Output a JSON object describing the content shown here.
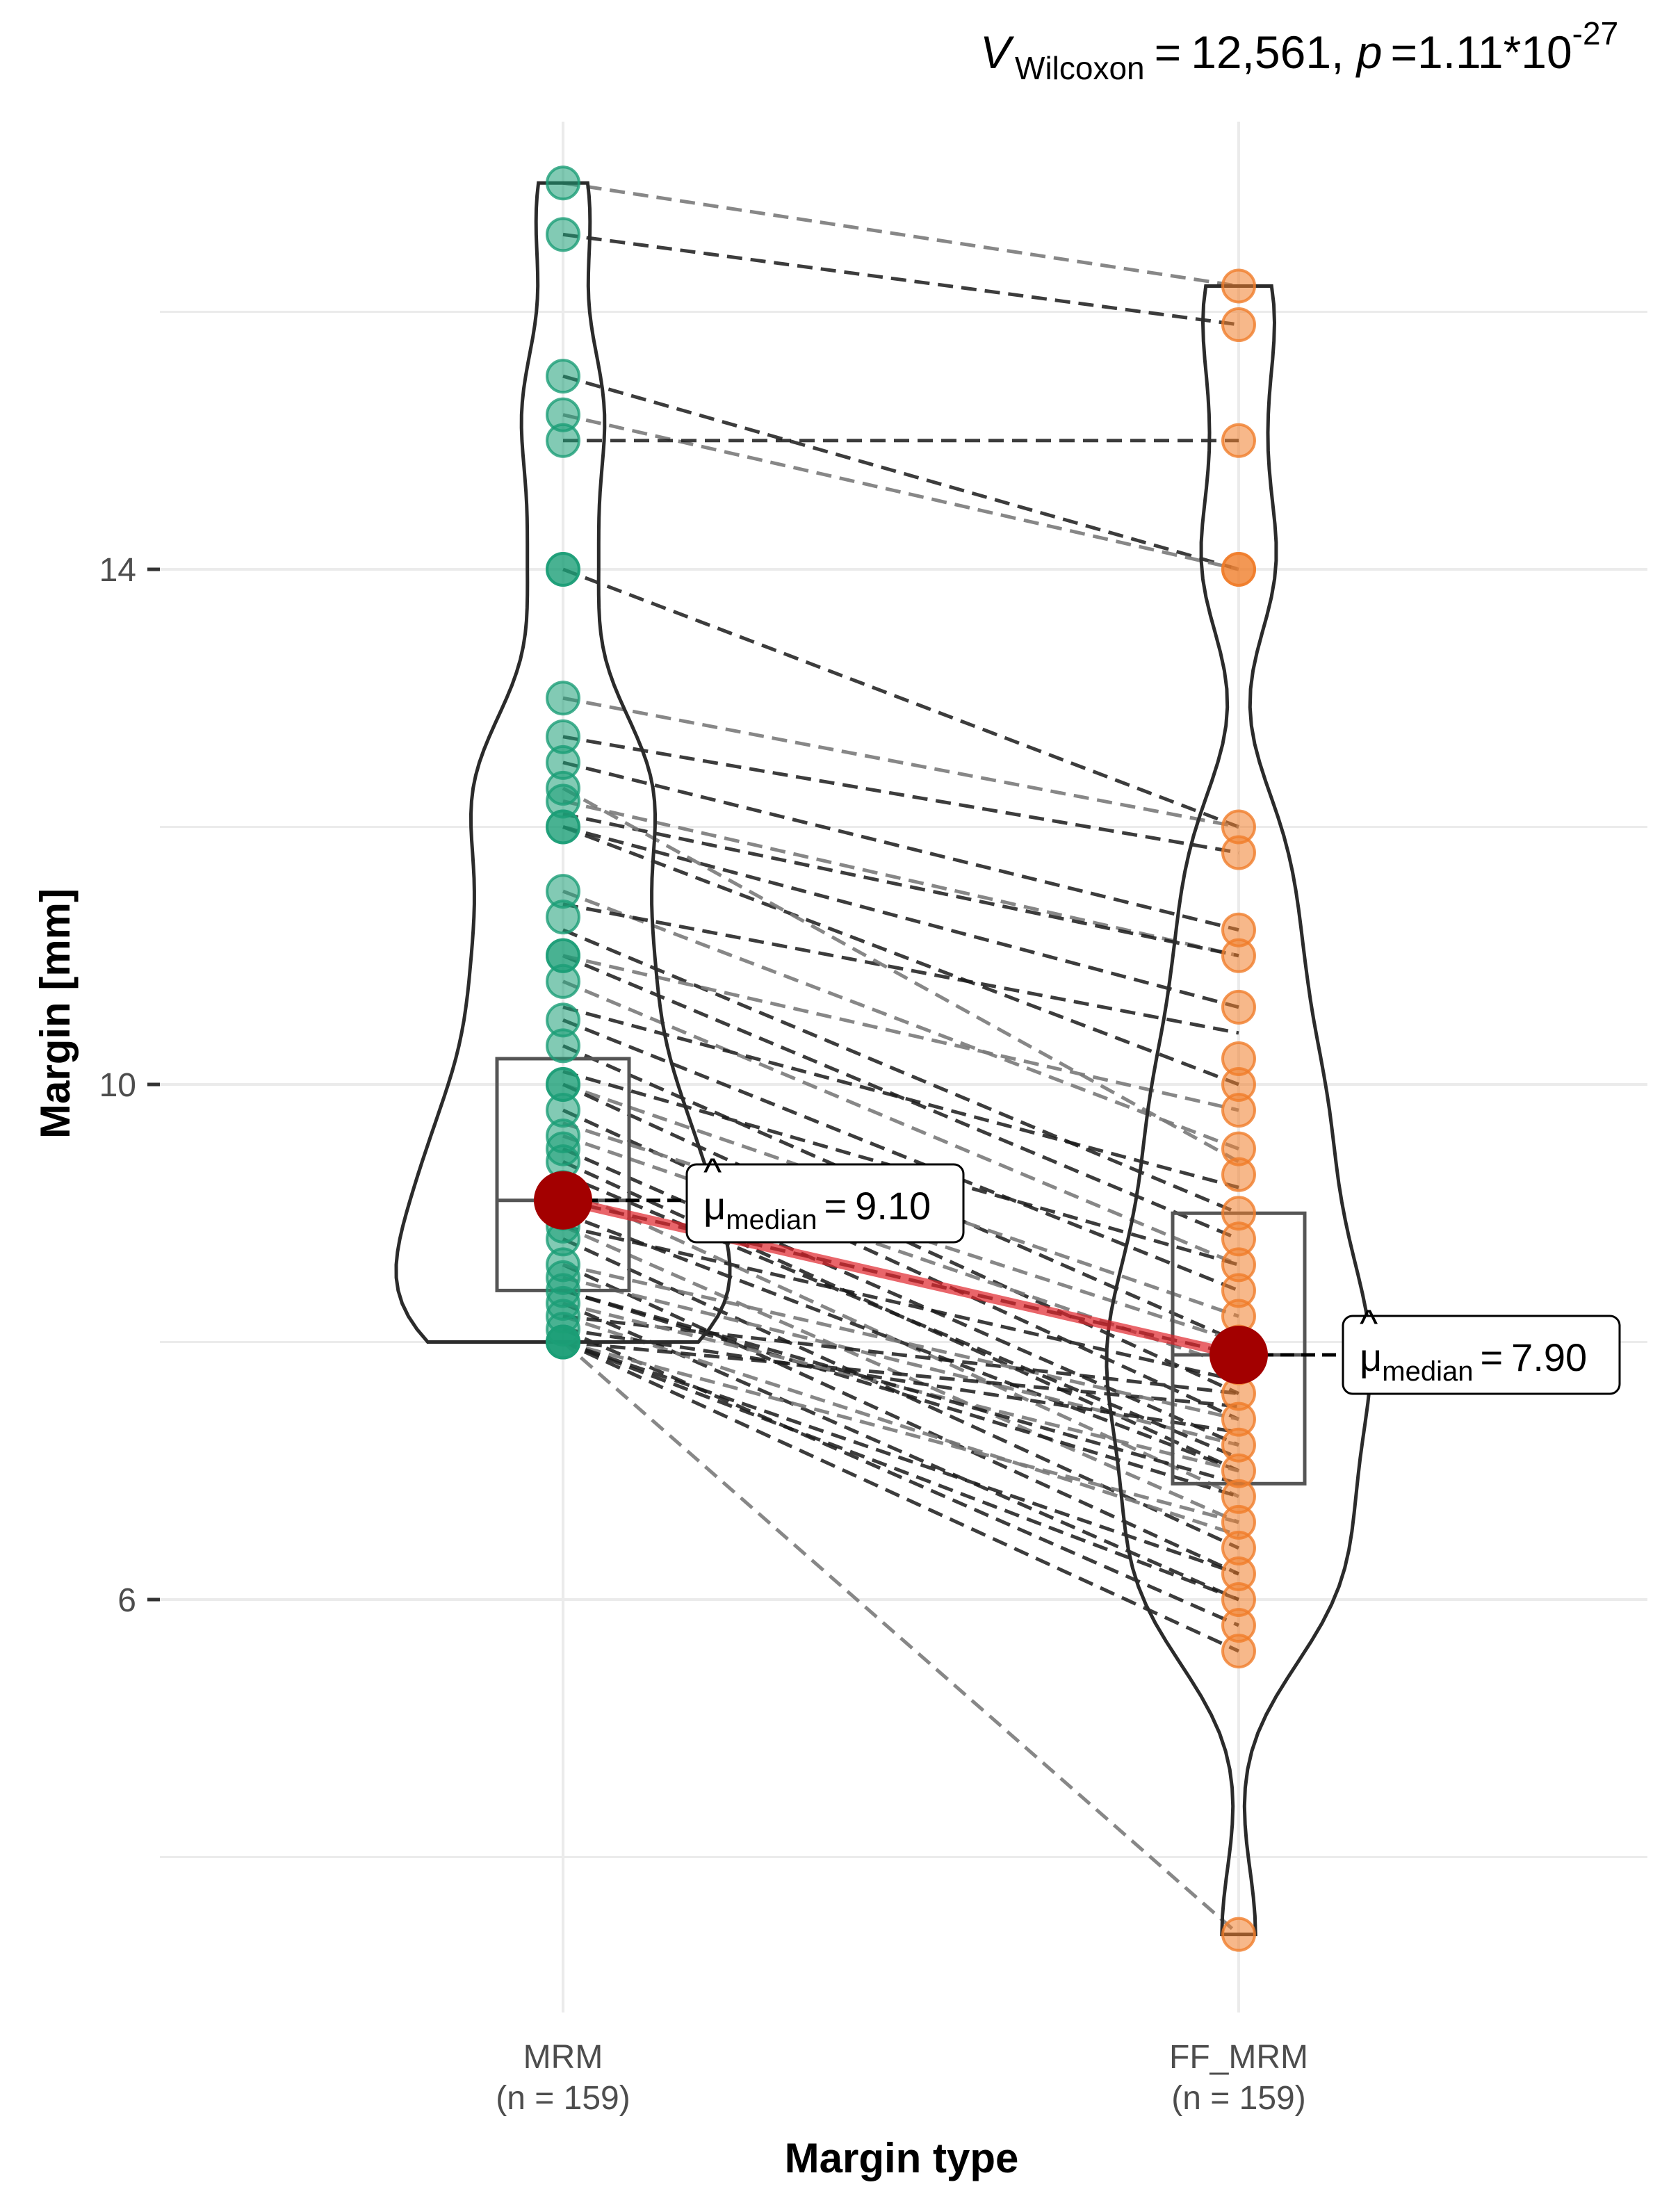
{
  "chart_data": {
    "type": "paired violin-box-scatter",
    "xlabel": "Margin type",
    "ylabel": "Margin [mm]",
    "yticks": [
      6,
      10,
      14
    ],
    "ylim": [
      3.2,
      17.9
    ],
    "grid": true,
    "legend": "none",
    "stats": {
      "statistic_symbol": "V",
      "statistic_subscript": "Wilcoxon",
      "statistic_value": "12,561",
      "p_label": "p",
      "p_mantissa": "1.11*10",
      "p_exponent": "-27"
    },
    "groups": [
      {
        "name": "MRM",
        "n_label": "(n = 159)",
        "color": "#1b9e77",
        "median_label_symbol": "μ",
        "median_label_subscript": "median",
        "median_label_value": "9.10",
        "median": 9.1,
        "box": {
          "q1": 8.4,
          "median": 9.1,
          "q3": 10.2
        },
        "violin_range": [
          8.0,
          17.0
        ],
        "values": [
          17.0,
          16.6,
          15.5,
          15.2,
          15.0,
          14.0,
          14.0,
          13.0,
          12.7,
          12.5,
          12.3,
          12.2,
          12.0,
          12.0,
          11.5,
          11.3,
          11.0,
          11.0,
          10.8,
          10.5,
          10.3,
          10.0,
          10.0,
          9.8,
          9.6,
          9.5,
          9.4,
          9.2,
          9.1,
          9.0,
          8.9,
          8.8,
          8.6,
          8.5,
          8.4,
          8.3,
          8.2,
          8.1,
          8.0,
          8.0,
          8.0,
          8.0
        ]
      },
      {
        "name": "FF_MRM",
        "n_label": "(n = 159)",
        "color": "#f07d2a",
        "median_label_symbol": "μ",
        "median_label_subscript": "median",
        "median_label_value": "7.90",
        "median": 7.9,
        "box": {
          "q1": 6.9,
          "median": 7.9,
          "q3": 9.0
        },
        "violin_range": [
          3.4,
          16.2
        ],
        "values": [
          16.2,
          15.9,
          15.0,
          14.0,
          14.0,
          12.0,
          11.8,
          11.2,
          11.0,
          10.6,
          10.2,
          10.0,
          9.8,
          9.5,
          9.3,
          9.0,
          8.8,
          8.6,
          8.4,
          8.2,
          8.0,
          7.9,
          7.8,
          7.6,
          7.4,
          7.2,
          7.0,
          6.8,
          6.6,
          6.4,
          6.2,
          6.0,
          5.8,
          5.6,
          3.4
        ]
      }
    ],
    "pairs": [
      [
        17.0,
        16.2
      ],
      [
        16.6,
        15.9
      ],
      [
        15.5,
        14.0
      ],
      [
        15.2,
        14.0
      ],
      [
        15.0,
        15.0
      ],
      [
        14.0,
        12.0
      ],
      [
        13.0,
        12.0
      ],
      [
        12.7,
        11.8
      ],
      [
        12.5,
        11.2
      ],
      [
        12.2,
        11.0
      ],
      [
        12.0,
        10.6
      ],
      [
        12.0,
        10.0
      ],
      [
        11.5,
        9.5
      ],
      [
        11.2,
        9.0
      ],
      [
        11.0,
        8.8
      ],
      [
        10.8,
        8.6
      ],
      [
        10.5,
        8.4
      ],
      [
        10.3,
        8.0
      ],
      [
        10.0,
        8.2
      ],
      [
        10.0,
        7.6
      ],
      [
        9.8,
        7.4
      ],
      [
        9.6,
        7.8
      ],
      [
        9.5,
        7.2
      ],
      [
        9.4,
        7.0
      ],
      [
        9.2,
        6.8
      ],
      [
        9.1,
        7.9
      ],
      [
        9.0,
        7.0
      ],
      [
        8.9,
        6.6
      ],
      [
        8.8,
        6.4
      ],
      [
        8.6,
        6.2
      ],
      [
        8.5,
        7.2
      ],
      [
        8.4,
        6.8
      ],
      [
        8.3,
        6.0
      ],
      [
        8.2,
        6.5
      ],
      [
        8.1,
        5.8
      ],
      [
        8.0,
        7.5
      ],
      [
        8.0,
        6.6
      ],
      [
        8.0,
        6.0
      ],
      [
        8.0,
        5.6
      ],
      [
        8.0,
        3.4
      ],
      [
        8.2,
        7.6
      ],
      [
        8.1,
        7.3
      ],
      [
        8.3,
        7.0
      ],
      [
        8.0,
        6.2
      ],
      [
        8.4,
        6.9
      ],
      [
        8.6,
        7.4
      ],
      [
        8.9,
        7.7
      ],
      [
        9.3,
        7.1
      ],
      [
        9.7,
        8.0
      ],
      [
        10.1,
        8.6
      ],
      [
        10.6,
        9.2
      ],
      [
        11.0,
        9.8
      ],
      [
        11.4,
        10.4
      ],
      [
        12.1,
        11.0
      ],
      [
        12.3,
        9.4
      ]
    ]
  }
}
